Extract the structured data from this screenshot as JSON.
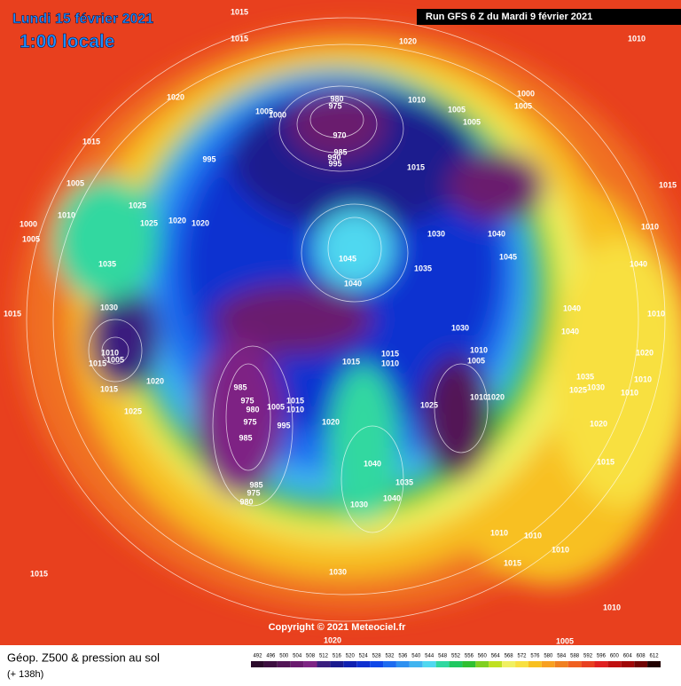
{
  "header": {
    "date": "Lundi 15 février 2021",
    "time": "1:00 locale",
    "run": "Run GFS 6 Z du Mardi 9 février 2021"
  },
  "map": {
    "copyright": "Copyright © 2021 Meteociel.fr",
    "isobar_labels": [
      1015,
      1015,
      1020,
      1010,
      1020,
      1005,
      1000,
      980,
      975,
      970,
      985,
      990,
      995,
      1010,
      1005,
      1005,
      1000,
      1005,
      1015,
      995,
      1015,
      1005,
      1015,
      1010,
      1025,
      1020,
      1020,
      1025,
      1000,
      1005,
      1030,
      1040,
      1010,
      1045,
      1045,
      1035,
      1035,
      1040,
      1040,
      1030,
      1015,
      1040,
      1010,
      1030,
      1040,
      1010,
      1005,
      1010,
      1005,
      1015,
      1015,
      1010,
      1015,
      1020,
      1020,
      1035,
      1010,
      1015,
      985,
      1030,
      1025,
      1010,
      975,
      1010,
      1020,
      980,
      1005,
      1010,
      1015,
      1025,
      1025,
      975,
      995,
      1020,
      1020,
      985,
      1015,
      1040,
      1035,
      985,
      975,
      980,
      1040,
      1030,
      1010,
      1010,
      1010,
      1015,
      1015,
      1030,
      1010,
      1020,
      1005
    ]
  },
  "footer": {
    "title": "Géop. Z500 & pression au sol",
    "lead_time": "(+ 138h)"
  },
  "scale": {
    "values": [
      492,
      496,
      500,
      504,
      508,
      512,
      516,
      520,
      524,
      528,
      532,
      536,
      540,
      544,
      548,
      552,
      556,
      560,
      564,
      568,
      572,
      576,
      580,
      584,
      588,
      592,
      596,
      600,
      604,
      608,
      612
    ],
    "colors": [
      "#2b0a2b",
      "#3d0f40",
      "#521556",
      "#6a1a6e",
      "#7e2484",
      "#3a1e7e",
      "#1a1a8e",
      "#1020b0",
      "#1030d0",
      "#1048e8",
      "#1e6cf0",
      "#2e90f0",
      "#40b4f0",
      "#50d8f0",
      "#30d8a0",
      "#20c860",
      "#30c030",
      "#80d020",
      "#c0e020",
      "#f0f060",
      "#f8e040",
      "#f8c020",
      "#f8a020",
      "#f08020",
      "#f06020",
      "#e84020",
      "#e02020",
      "#c01010",
      "#a00808",
      "#700404",
      "#200000"
    ]
  }
}
